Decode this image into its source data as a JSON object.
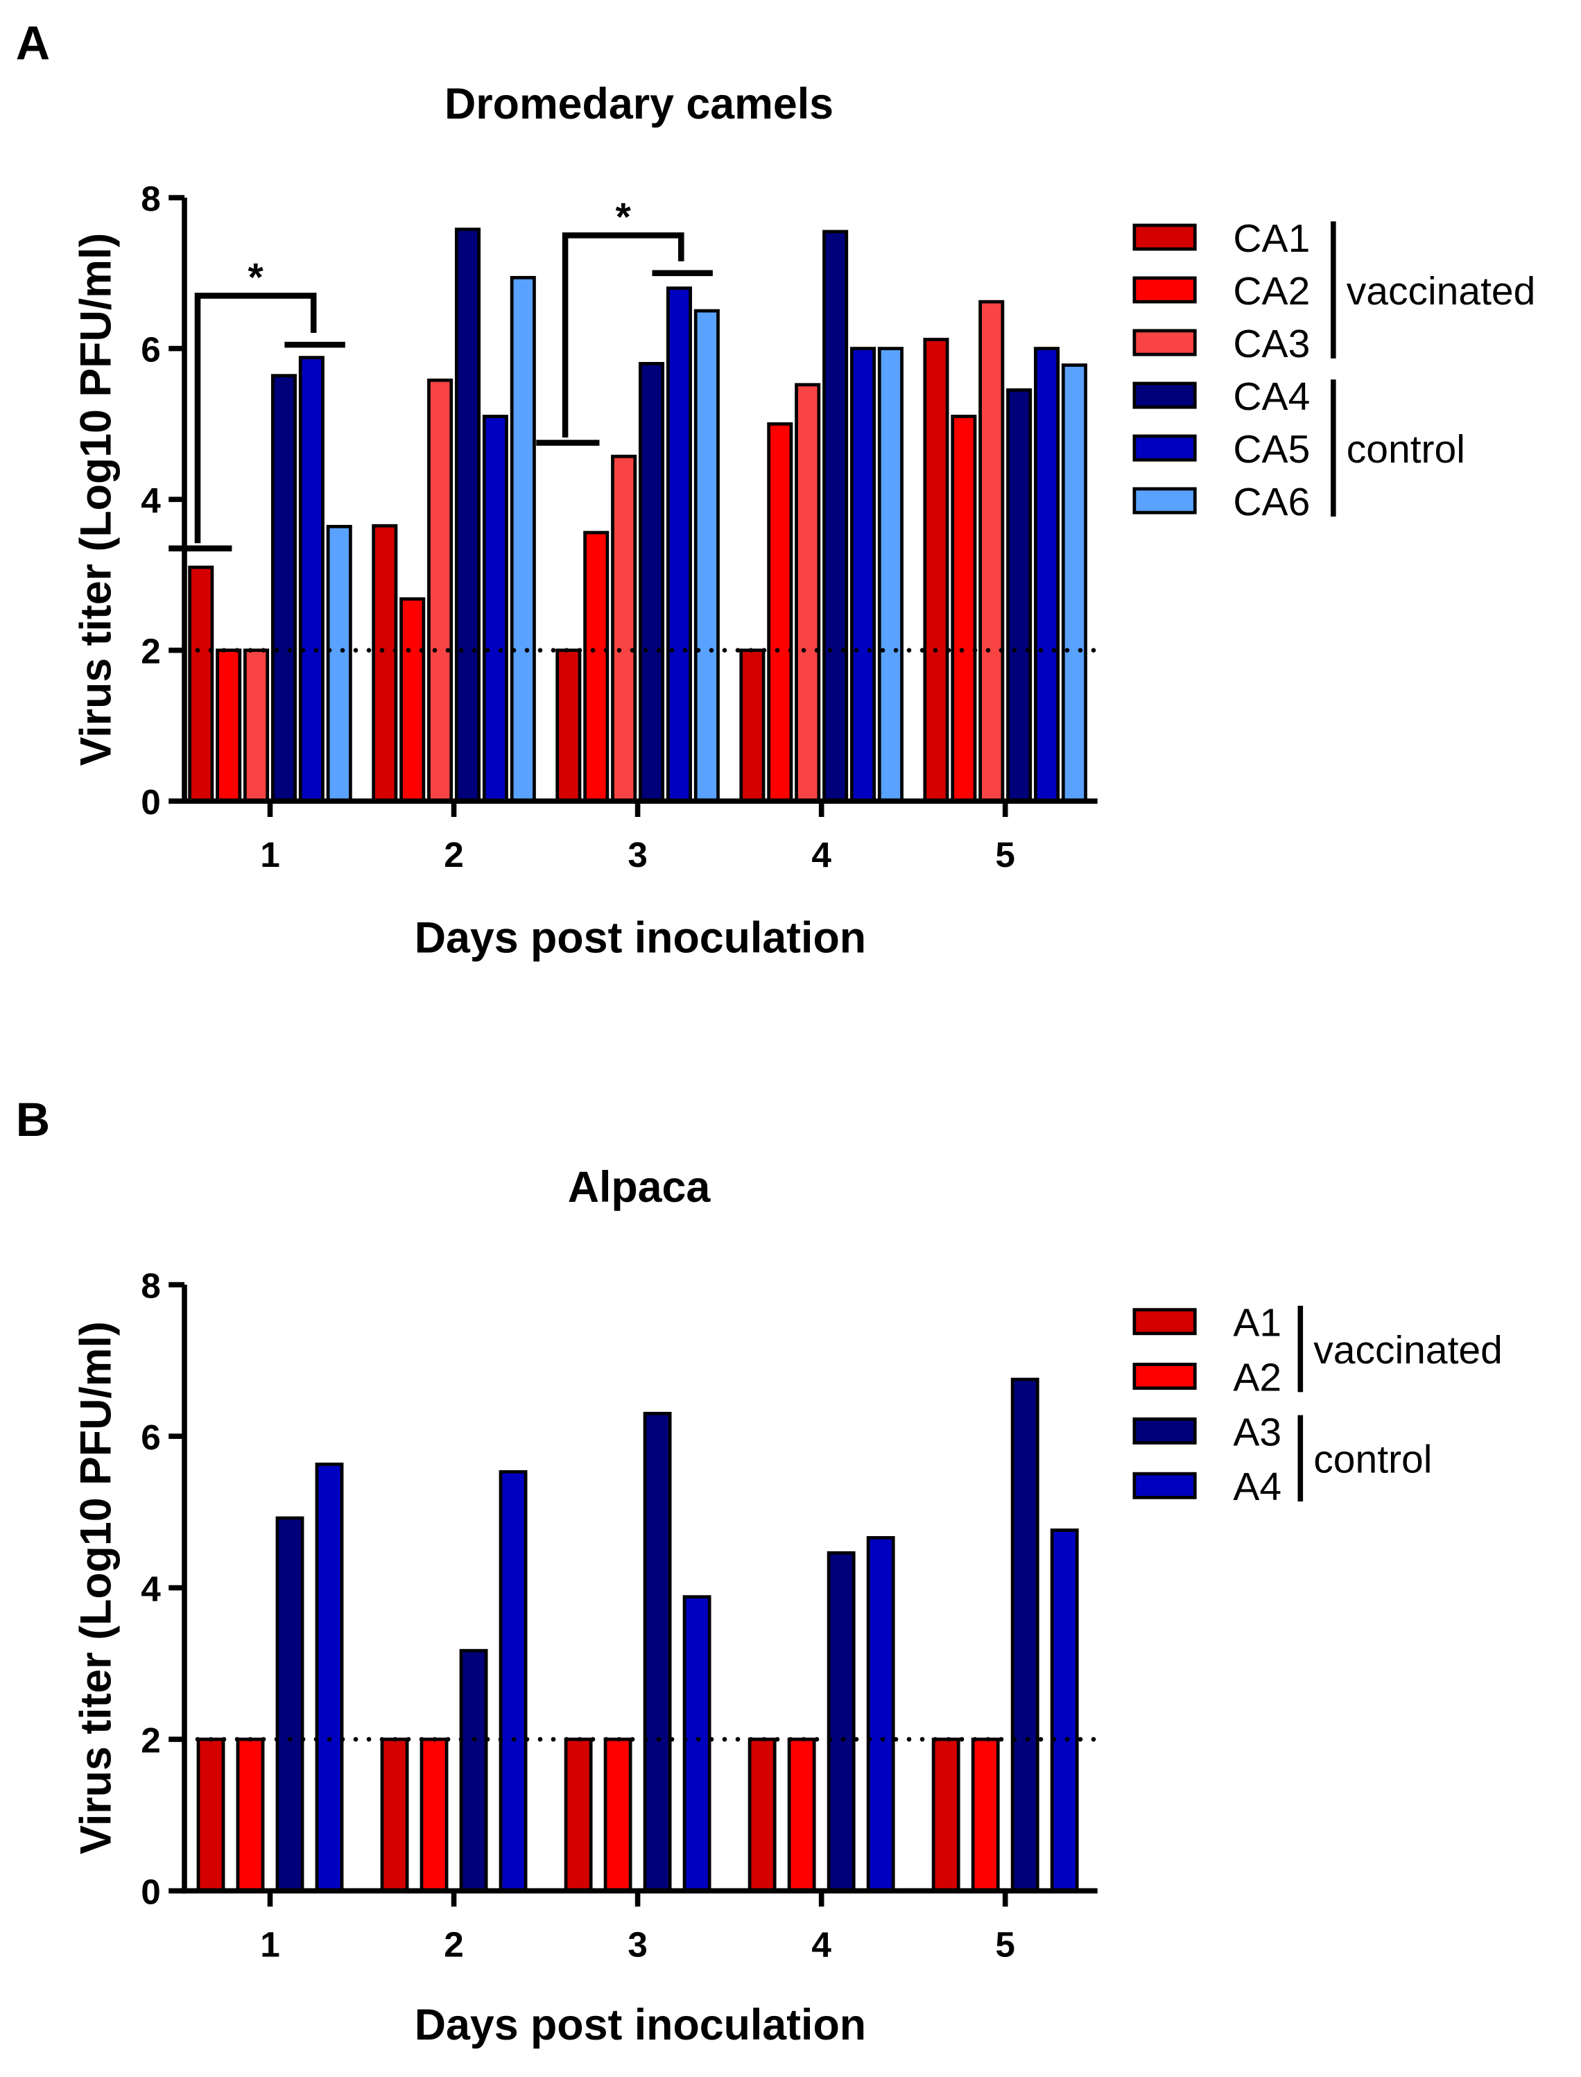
{
  "chart_data": [
    {
      "panel": "A",
      "type": "bar",
      "title": "Dromedary camels",
      "xlabel": "Days post inoculation",
      "ylabel": "Virus titer (Log10 PFU/ml)",
      "ylim": [
        0,
        8
      ],
      "yticks": [
        "0",
        "2",
        "4",
        "6",
        "8"
      ],
      "categories": [
        "1",
        "2",
        "3",
        "4",
        "5"
      ],
      "detection_limit": 2,
      "series": [
        {
          "name": "CA1",
          "color": "#d40000",
          "values": [
            3.1,
            3.65,
            2.0,
            2.0,
            6.12
          ]
        },
        {
          "name": "CA2",
          "color": "#ff0000",
          "values": [
            2.0,
            2.68,
            3.56,
            5.0,
            5.1
          ]
        },
        {
          "name": "CA3",
          "color": "#f84444",
          "values": [
            2.0,
            5.58,
            4.57,
            5.52,
            6.62
          ]
        },
        {
          "name": "CA4",
          "color": "#00007a",
          "values": [
            5.64,
            7.58,
            5.8,
            7.55,
            5.45
          ]
        },
        {
          "name": "CA5",
          "color": "#0000c0",
          "values": [
            5.88,
            5.1,
            6.8,
            6.0,
            6.0
          ]
        },
        {
          "name": "CA6",
          "color": "#5aa2ff",
          "values": [
            3.64,
            6.94,
            6.5,
            6.0,
            5.78
          ]
        }
      ],
      "groups": [
        {
          "label": "vaccinated",
          "members": [
            "CA1",
            "CA2",
            "CA3"
          ]
        },
        {
          "label": "control",
          "members": [
            "CA4",
            "CA5",
            "CA6"
          ]
        }
      ],
      "annotations": [
        {
          "day_index": 0,
          "label": "*",
          "left_y": 3.35,
          "right_y": 6.05,
          "bracket_top": 6.7
        },
        {
          "day_index": 2,
          "label": "*",
          "left_y": 4.75,
          "right_y": 7.0,
          "bracket_top": 7.5
        }
      ],
      "legend_position": "right"
    },
    {
      "panel": "B",
      "type": "bar",
      "title": "Alpaca",
      "xlabel": "Days post inoculation",
      "ylabel": "Virus titer (Log10 PFU/ml)",
      "ylim": [
        0,
        8
      ],
      "yticks": [
        "0",
        "2",
        "4",
        "6",
        "8"
      ],
      "categories": [
        "1",
        "2",
        "3",
        "4",
        "5"
      ],
      "detection_limit": 2,
      "series": [
        {
          "name": "A1",
          "color": "#d40000",
          "values": [
            2.0,
            2.0,
            2.0,
            2.0,
            2.0
          ]
        },
        {
          "name": "A2",
          "color": "#ff0000",
          "values": [
            2.0,
            2.0,
            2.0,
            2.0,
            2.0
          ]
        },
        {
          "name": "A3",
          "color": "#00007a",
          "values": [
            4.92,
            3.17,
            6.3,
            4.46,
            6.75
          ]
        },
        {
          "name": "A4",
          "color": "#0000c0",
          "values": [
            5.63,
            5.53,
            3.88,
            4.66,
            4.76
          ]
        }
      ],
      "groups": [
        {
          "label": "vaccinated",
          "members": [
            "A1",
            "A2"
          ]
        },
        {
          "label": "control",
          "members": [
            "A3",
            "A4"
          ]
        }
      ],
      "annotations": [],
      "legend_position": "right"
    }
  ]
}
